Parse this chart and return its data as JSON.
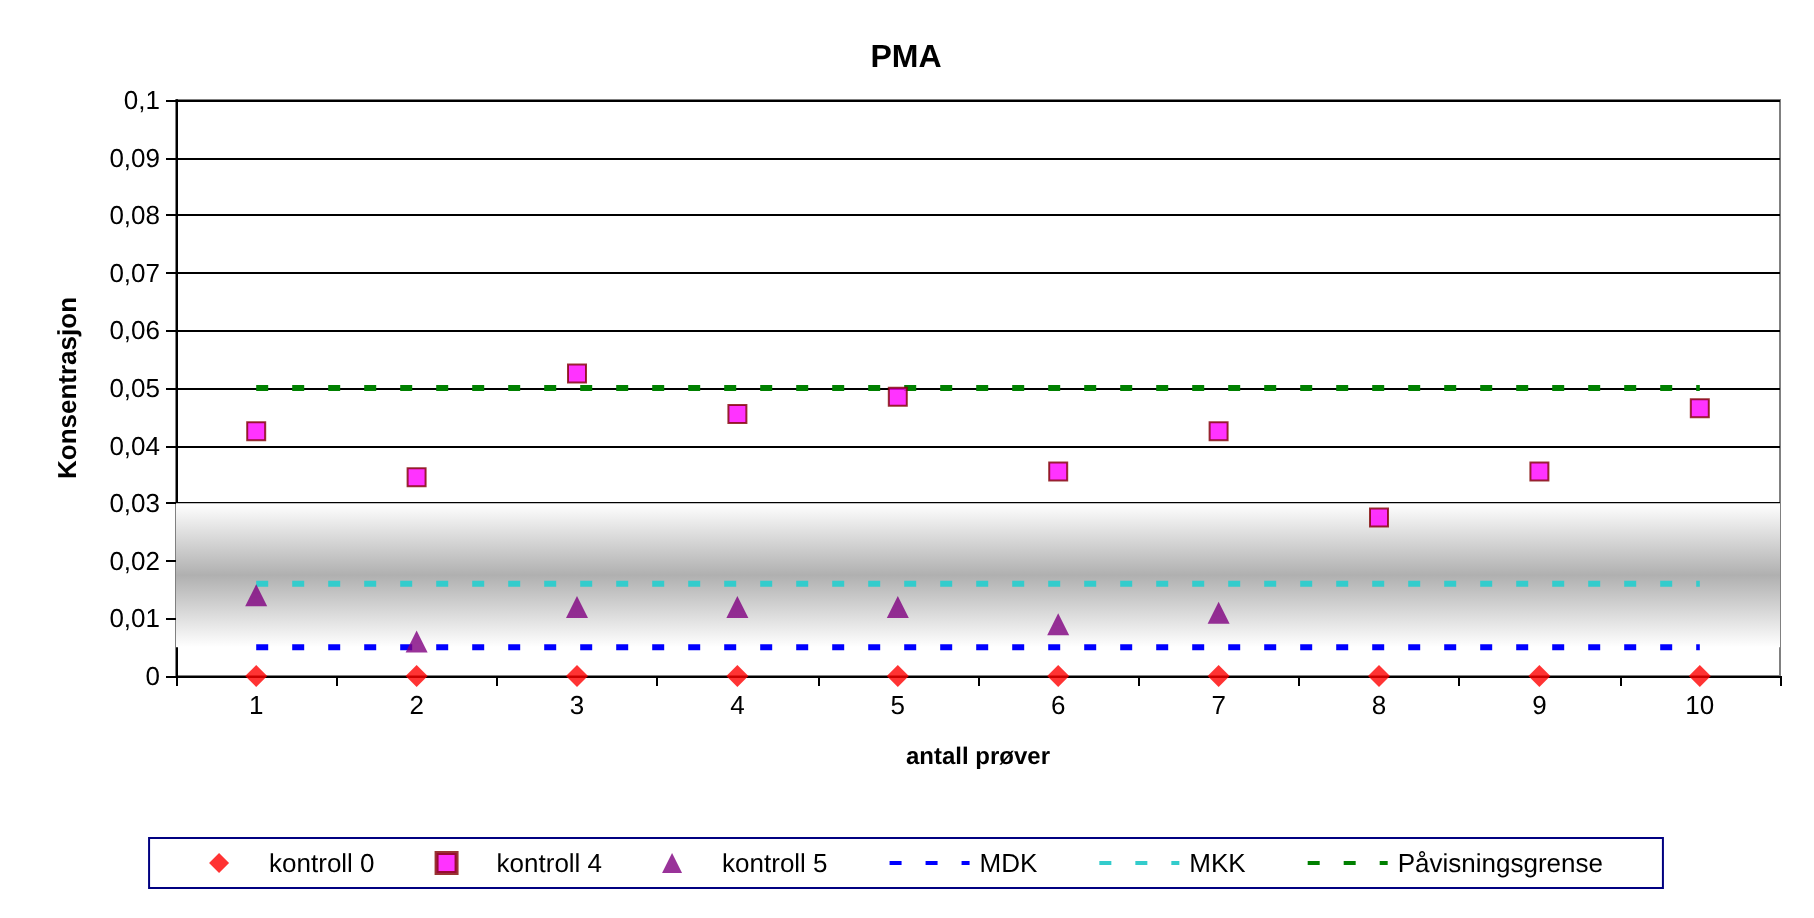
{
  "chart_data": {
    "type": "scatter",
    "title": "PMA",
    "xlabel": "antall prøver",
    "ylabel": "Konsentrasjon",
    "categories": [
      "1",
      "2",
      "3",
      "4",
      "5",
      "6",
      "7",
      "8",
      "9",
      "10"
    ],
    "series": [
      {
        "name": "kontroll 0",
        "marker": "diamond",
        "color": "#ff0000",
        "values": [
          0,
          0,
          0,
          0,
          0,
          0,
          0,
          0,
          0,
          0
        ]
      },
      {
        "name": "kontroll 4",
        "marker": "square",
        "color": "#ff00ff",
        "values": [
          0.0425,
          0.0345,
          0.0525,
          0.0455,
          0.0485,
          0.0355,
          0.0425,
          0.0275,
          0.0355,
          0.0465
        ]
      },
      {
        "name": "kontroll 5",
        "marker": "triangle",
        "color": "#800080",
        "values": [
          0.014,
          0.006,
          0.012,
          0.012,
          0.012,
          0.009,
          0.011,
          null,
          null,
          null
        ]
      },
      {
        "name": "MDK",
        "type": "line",
        "marker": "none",
        "line_style": "dashed",
        "color": "#0000ff",
        "values": [
          0.005,
          0.005,
          0.005,
          0.005,
          0.005,
          0.005,
          0.005,
          0.005,
          0.005,
          0.005
        ]
      },
      {
        "name": "MKK",
        "type": "line",
        "marker": "none",
        "line_style": "dashed",
        "color": "#33cccc",
        "values": [
          0.016,
          0.016,
          0.016,
          0.016,
          0.016,
          0.016,
          0.016,
          0.016,
          0.016,
          0.016
        ]
      },
      {
        "name": "Påvisningsgrense",
        "type": "line",
        "marker": "none",
        "line_style": "dashed",
        "color": "#008000",
        "values": [
          0.05,
          0.05,
          0.05,
          0.05,
          0.05,
          0.05,
          0.05,
          0.05,
          0.05,
          0.05
        ]
      }
    ],
    "bands": [
      {
        "axis": "y",
        "from": 0.005,
        "to": 0.03,
        "color": "#b0b0b0"
      }
    ],
    "ylim": [
      0,
      0.1
    ],
    "yticks": [
      0,
      {
        "value": 0.01,
        "label": "0,01"
      },
      {
        "value": 0.02,
        "label": "0,02"
      },
      {
        "value": 0.03,
        "label": "0,03"
      },
      {
        "value": 0.04,
        "label": "0,04"
      },
      {
        "value": 0.05,
        "label": "0,05"
      },
      {
        "value": 0.06,
        "label": "0,06"
      },
      {
        "value": 0.07,
        "label": "0,07"
      },
      {
        "value": 0.08,
        "label": "0,08"
      },
      {
        "value": 0.09,
        "label": "0,09"
      },
      {
        "value": 0.1,
        "label": "0,1"
      }
    ],
    "grid": "y",
    "legend": "bottom"
  }
}
